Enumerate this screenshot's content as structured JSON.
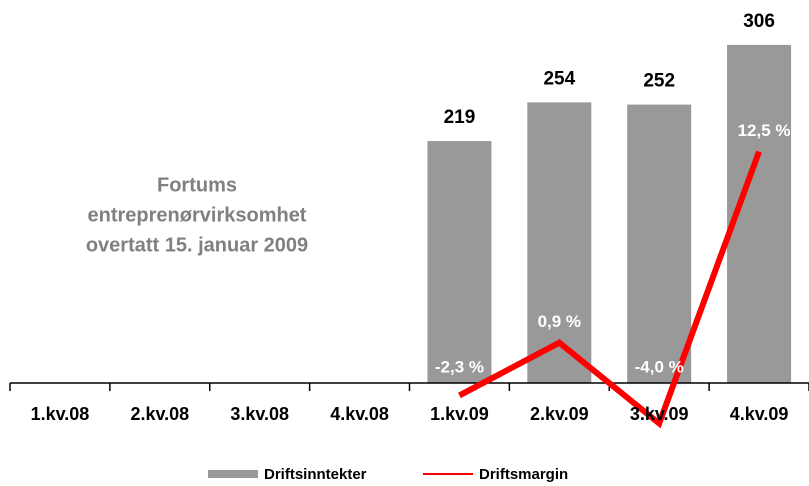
{
  "chart_data": {
    "type": "bar",
    "annotation": [
      "Fortums",
      "entreprenørvirksomhet",
      "overtatt 15. januar 2009"
    ],
    "categories": [
      "1.kv.08",
      "2.kv.08",
      "3.kv.08",
      "4.kv.08",
      "1.kv.09",
      "2.kv.09",
      "3.kv.09",
      "4.kv.09"
    ],
    "series": [
      {
        "name": "Driftsinntekter",
        "type": "bar",
        "color": "#999999",
        "values": [
          null,
          null,
          null,
          null,
          219,
          254,
          252,
          306
        ]
      },
      {
        "name": "Driftsmargin",
        "type": "line",
        "axis": "y2",
        "color": "#ff0000",
        "values": [
          null,
          null,
          null,
          null,
          -2.3,
          0.9,
          -4.0,
          12.5
        ],
        "value_labels": [
          null,
          null,
          null,
          null,
          "-2,3 %",
          "0,9 %",
          "-4,0 %",
          "12,5 %"
        ]
      }
    ],
    "ylim": [
      -42.5,
      337.6
    ],
    "y2lim": [
      -4.4,
      21.1
    ],
    "legend": "bottom"
  }
}
